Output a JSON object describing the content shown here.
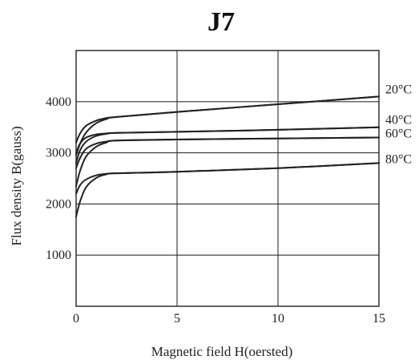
{
  "chart_data": {
    "type": "line",
    "title": "J7",
    "xlabel": "Magnetic field H(oersted)",
    "ylabel": "Flux density B(gauss)",
    "xlim": [
      0,
      15
    ],
    "ylim": [
      0,
      5000
    ],
    "x_ticks": [
      "0",
      "5",
      "10",
      "15"
    ],
    "y_ticks": [
      "1000",
      "2000",
      "3000",
      "4000"
    ],
    "x_tick_values": [
      0,
      5,
      10,
      15
    ],
    "y_tick_values": [
      1000,
      2000,
      3000,
      4000
    ],
    "grid": true,
    "series": [
      {
        "name": "20°C",
        "curves": [
          {
            "x": [
              0,
              0.2,
              0.5,
              1.0,
              1.5,
              2.0,
              5,
              10,
              15
            ],
            "y": [
              3200,
              3380,
              3530,
              3630,
              3680,
              3700,
              3800,
              3950,
              4100
            ]
          },
          {
            "x": [
              0,
              0.2,
              0.5,
              1.0,
              1.5,
              2.0,
              5,
              10,
              15
            ],
            "y": [
              2950,
              3180,
              3400,
              3580,
              3660,
              3700,
              3800,
              3950,
              4100
            ]
          }
        ]
      },
      {
        "name": "40°C",
        "curves": [
          {
            "x": [
              0,
              0.2,
              0.5,
              1.0,
              1.5,
              2.0,
              5,
              10,
              15
            ],
            "y": [
              3000,
              3180,
              3300,
              3360,
              3380,
              3390,
              3410,
              3450,
              3500
            ]
          },
          {
            "x": [
              0,
              0.2,
              0.5,
              1.0,
              1.5,
              2.0,
              5,
              10,
              15
            ],
            "y": [
              2800,
              3050,
              3220,
              3330,
              3370,
              3390,
              3410,
              3450,
              3500
            ]
          }
        ]
      },
      {
        "name": "60°C",
        "curves": [
          {
            "x": [
              0,
              0.2,
              0.5,
              1.0,
              1.5,
              2.0,
              5,
              10,
              15
            ],
            "y": [
              2700,
              2900,
              3080,
              3180,
              3220,
              3240,
              3260,
              3280,
              3300
            ]
          },
          {
            "x": [
              0,
              0.2,
              0.5,
              1.0,
              1.5,
              2.0,
              5,
              10,
              15
            ],
            "y": [
              2350,
              2650,
              2930,
              3120,
              3200,
              3240,
              3260,
              3280,
              3300
            ]
          }
        ]
      },
      {
        "name": "80°C",
        "curves": [
          {
            "x": [
              0,
              0.2,
              0.5,
              1.0,
              1.5,
              2.0,
              5,
              10,
              15
            ],
            "y": [
              2200,
              2370,
              2480,
              2560,
              2590,
              2600,
              2630,
              2700,
              2800
            ]
          },
          {
            "x": [
              0,
              0.2,
              0.5,
              1.0,
              1.5,
              2.0,
              5,
              10,
              15
            ],
            "y": [
              1750,
              2050,
              2330,
              2510,
              2580,
              2600,
              2630,
              2700,
              2800
            ]
          }
        ]
      }
    ]
  }
}
